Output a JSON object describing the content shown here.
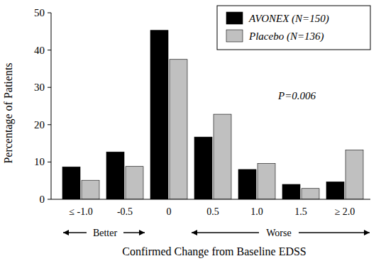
{
  "chart_data": {
    "type": "bar",
    "x_label": "Confirmed Change from Baseline EDSS",
    "y_label": "Percentage of Patients",
    "categories": [
      "≤ -1.0",
      "-0.5",
      "0",
      "0.5",
      "1.0",
      "1.5",
      "≥ 2.0"
    ],
    "series": [
      {
        "name": "AVONEX (N=150)",
        "color": "#000000",
        "values": [
          8.7,
          12.7,
          45.3,
          16.7,
          8.0,
          4.0,
          4.7
        ]
      },
      {
        "name": "Placebo (N=136)",
        "color": "#c0c0c0",
        "values": [
          5.1,
          8.8,
          37.5,
          22.8,
          9.6,
          2.9,
          13.2
        ]
      }
    ],
    "ylim": [
      0,
      50
    ],
    "yticks": [
      0,
      10,
      20,
      30,
      40,
      50
    ],
    "grid": false,
    "legend": "upper right",
    "annotations": [
      "P=0.006",
      "Better",
      "Worse"
    ]
  }
}
